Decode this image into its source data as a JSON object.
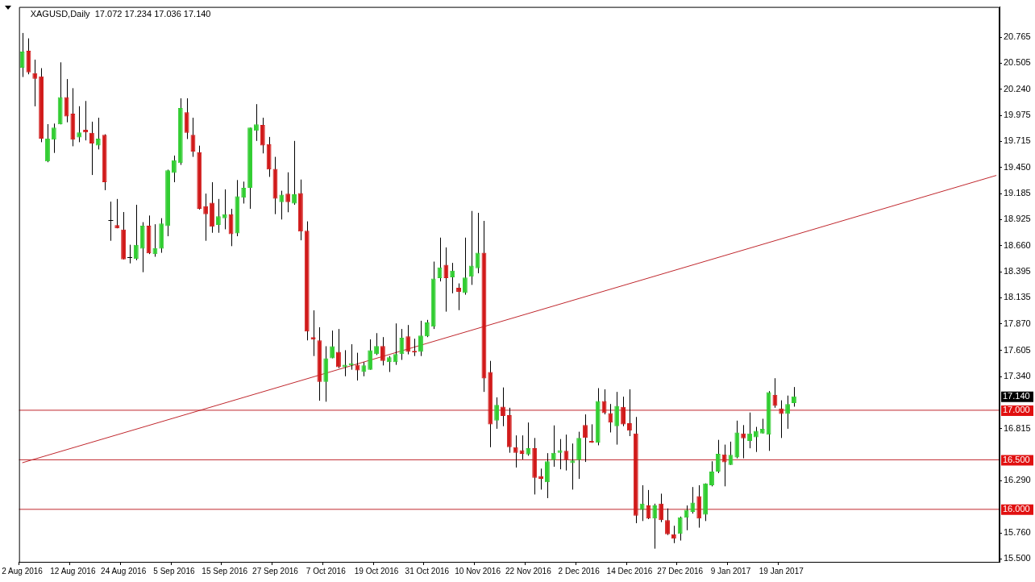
{
  "chart_data": {
    "type": "candlestick",
    "title": "XAGUSD,Daily  17.072 17.234 17.036 17.140",
    "categories": [
      "2 Aug 2016",
      null,
      null,
      null,
      null,
      null,
      null,
      null,
      "12 Aug 2016",
      null,
      null,
      null,
      null,
      null,
      null,
      null,
      "24 Aug 2016",
      null,
      null,
      null,
      null,
      null,
      null,
      null,
      "5 Sep 2016",
      null,
      null,
      null,
      null,
      null,
      null,
      null,
      "15 Sep 2016",
      null,
      null,
      null,
      null,
      null,
      null,
      null,
      "27 Sep 2016",
      null,
      null,
      null,
      null,
      null,
      null,
      null,
      "7 Oct 2016",
      null,
      null,
      null,
      null,
      null,
      null,
      null,
      "19 Oct 2016",
      null,
      null,
      null,
      null,
      null,
      null,
      null,
      "31 Oct 2016",
      null,
      null,
      null,
      null,
      null,
      null,
      null,
      "10 Nov 2016",
      null,
      null,
      null,
      null,
      null,
      null,
      null,
      "22 Nov 2016",
      null,
      null,
      null,
      null,
      null,
      null,
      null,
      "2 Dec 2016",
      null,
      null,
      null,
      null,
      null,
      null,
      null,
      "14 Dec 2016",
      null,
      null,
      null,
      null,
      null,
      null,
      null,
      "27 Dec 2016",
      null,
      null,
      null,
      null,
      null,
      null,
      null,
      "9 Jan 2017",
      null,
      null,
      null,
      null,
      null,
      null,
      null,
      "19 Jan 2017",
      null,
      null,
      null,
      null,
      null,
      null,
      null,
      null,
      null,
      null,
      null,
      null,
      null,
      null,
      null,
      null,
      null,
      null,
      null,
      null,
      null,
      null,
      null,
      null,
      null,
      null,
      null,
      null,
      null,
      null,
      null,
      null,
      null,
      null
    ],
    "ohlc": [
      [
        20.457,
        20.807,
        20.363,
        20.619
      ],
      [
        20.627,
        20.753,
        20.39,
        20.409
      ],
      [
        20.401,
        20.538,
        20.067,
        20.344
      ],
      [
        20.369,
        20.452,
        19.705,
        19.74
      ],
      [
        19.511,
        19.887,
        19.503,
        19.74
      ],
      [
        19.731,
        19.893,
        19.597,
        19.852
      ],
      [
        19.885,
        20.511,
        19.885,
        20.159
      ],
      [
        20.159,
        20.342,
        19.906,
        19.965
      ],
      [
        19.992,
        20.25,
        19.664,
        19.731
      ],
      [
        19.753,
        20.068,
        19.705,
        19.804
      ],
      [
        19.831,
        20.121,
        19.723,
        19.804
      ],
      [
        19.799,
        19.912,
        19.374,
        19.691
      ],
      [
        19.672,
        19.952,
        19.632,
        19.74
      ],
      [
        19.78,
        19.785,
        19.221,
        19.301
      ],
      [
        18.917,
        19.105,
        18.71,
        18.917
      ],
      [
        18.869,
        19.132,
        18.836,
        18.836
      ],
      [
        18.823,
        19.0,
        18.522,
        18.522
      ],
      [
        18.541,
        18.67,
        18.482,
        18.541
      ],
      [
        18.527,
        19.073,
        18.514,
        18.67
      ],
      [
        18.63,
        18.898,
        18.393,
        18.863
      ],
      [
        18.863,
        18.965,
        18.576,
        18.584
      ],
      [
        18.576,
        18.877,
        18.549,
        18.637
      ],
      [
        18.63,
        18.938,
        18.589,
        18.885
      ],
      [
        18.858,
        19.428,
        18.756,
        19.422
      ],
      [
        19.395,
        19.57,
        19.301,
        19.524
      ],
      [
        19.495,
        20.148,
        19.476,
        20.049
      ],
      [
        20.008,
        20.148,
        19.737,
        19.799
      ],
      [
        19.78,
        19.952,
        19.557,
        19.61
      ],
      [
        19.605,
        19.67,
        19.025,
        19.033
      ],
      [
        19.06,
        19.186,
        18.71,
        18.979
      ],
      [
        19.094,
        19.301,
        18.791,
        18.853
      ],
      [
        18.871,
        19.132,
        18.791,
        18.957
      ],
      [
        18.938,
        19.229,
        18.826,
        18.979
      ],
      [
        18.979,
        19.033,
        18.656,
        18.777
      ],
      [
        18.785,
        19.323,
        18.756,
        19.159
      ],
      [
        19.145,
        19.307,
        19.086,
        19.245
      ],
      [
        19.245,
        19.852,
        19.033,
        19.852
      ],
      [
        19.82,
        20.089,
        19.718,
        19.885
      ],
      [
        19.879,
        19.952,
        19.592,
        19.672
      ],
      [
        19.686,
        19.758,
        19.355,
        19.43
      ],
      [
        19.436,
        19.557,
        18.979,
        19.135
      ],
      [
        19.1,
        19.215,
        18.925,
        19.175
      ],
      [
        19.186,
        19.401,
        18.998,
        19.1
      ],
      [
        19.086,
        19.718,
        19.073,
        19.18
      ],
      [
        19.191,
        19.328,
        18.715,
        18.804
      ],
      [
        18.812,
        18.906,
        17.705,
        17.794
      ],
      [
        17.738,
        18.008,
        17.547,
        17.715
      ],
      [
        17.705,
        17.837,
        17.096,
        17.287
      ],
      [
        17.287,
        17.646,
        17.086,
        17.524
      ],
      [
        17.524,
        17.804,
        17.524,
        17.646
      ],
      [
        17.59,
        17.82,
        17.425,
        17.435
      ],
      [
        17.435,
        17.606,
        17.343,
        17.458
      ],
      [
        17.452,
        17.666,
        17.409,
        17.475
      ],
      [
        17.458,
        17.58,
        17.3,
        17.402
      ],
      [
        17.386,
        17.485,
        17.343,
        17.452
      ],
      [
        17.409,
        17.715,
        17.409,
        17.606
      ],
      [
        17.567,
        17.778,
        17.557,
        17.649
      ],
      [
        17.649,
        17.738,
        17.452,
        17.498
      ],
      [
        17.485,
        17.547,
        17.386,
        17.534
      ],
      [
        17.485,
        17.876,
        17.458,
        17.567
      ],
      [
        17.567,
        17.82,
        17.508,
        17.731
      ],
      [
        17.745,
        17.86,
        17.564,
        17.59
      ],
      [
        17.6,
        17.722,
        17.547,
        17.583
      ],
      [
        17.59,
        17.903,
        17.547,
        17.754
      ],
      [
        17.745,
        17.912,
        17.738,
        17.886
      ],
      [
        17.843,
        18.5,
        17.82,
        18.33
      ],
      [
        18.334,
        18.742,
        18.3,
        18.441
      ],
      [
        18.468,
        18.643,
        17.995,
        18.334
      ],
      [
        18.342,
        18.487,
        18.18,
        18.409
      ],
      [
        18.236,
        18.28,
        18.01,
        18.196
      ],
      [
        18.183,
        18.742,
        18.166,
        18.339
      ],
      [
        18.347,
        19.011,
        18.265,
        18.46
      ],
      [
        18.433,
        18.992,
        18.382,
        18.589
      ],
      [
        18.589,
        18.911,
        17.185,
        17.32
      ],
      [
        17.386,
        17.498,
        16.627,
        16.858
      ],
      [
        16.895,
        17.13,
        16.813,
        17.055
      ],
      [
        17.036,
        17.23,
        16.839,
        16.943
      ],
      [
        16.951,
        17.025,
        16.571,
        16.627
      ],
      [
        16.627,
        16.746,
        16.422,
        16.571
      ],
      [
        16.597,
        16.746,
        16.504,
        16.56
      ],
      [
        16.553,
        16.876,
        16.541,
        16.616
      ],
      [
        16.616,
        16.72,
        16.15,
        16.318
      ],
      [
        16.337,
        16.411,
        16.199,
        16.307
      ],
      [
        16.273,
        16.567,
        16.113,
        16.485
      ],
      [
        16.497,
        16.847,
        16.43,
        16.571
      ],
      [
        16.571,
        16.709,
        16.404,
        16.597
      ],
      [
        16.59,
        16.754,
        16.392,
        16.497
      ],
      [
        16.467,
        16.664,
        16.199,
        16.493
      ],
      [
        16.497,
        16.783,
        16.307,
        16.72
      ],
      [
        16.85,
        16.958,
        16.478,
        16.72
      ],
      [
        16.69,
        16.858,
        16.672,
        16.672
      ],
      [
        16.672,
        17.223,
        16.646,
        17.092
      ],
      [
        17.092,
        17.211,
        16.958,
        16.97
      ],
      [
        16.97,
        17.063,
        16.776,
        16.876
      ],
      [
        16.839,
        17.185,
        16.653,
        17.044
      ],
      [
        17.033,
        17.137,
        16.839,
        16.858
      ],
      [
        16.869,
        17.211,
        16.739,
        16.794
      ],
      [
        16.765,
        16.932,
        15.86,
        15.935
      ],
      [
        15.994,
        16.243,
        15.882,
        16.057
      ],
      [
        16.039,
        16.195,
        15.901,
        15.908
      ],
      [
        15.908,
        16.057,
        15.603,
        16.039
      ],
      [
        16.057,
        16.158,
        15.871,
        15.89
      ],
      [
        15.89,
        16.009,
        15.741,
        15.748
      ],
      [
        15.748,
        15.834,
        15.659,
        15.704
      ],
      [
        15.752,
        15.927,
        15.685,
        15.92
      ],
      [
        15.916,
        16.039,
        15.789,
        15.994
      ],
      [
        15.975,
        16.225,
        15.957,
        16.068
      ],
      [
        16.132,
        16.243,
        15.815,
        15.908
      ],
      [
        15.946,
        16.262,
        15.882,
        16.262
      ],
      [
        16.243,
        16.485,
        16.232,
        16.381
      ],
      [
        16.381,
        16.701,
        16.366,
        16.56
      ],
      [
        16.553,
        16.653,
        16.232,
        16.474
      ],
      [
        16.448,
        16.683,
        16.448,
        16.549
      ],
      [
        16.523,
        16.895,
        16.515,
        16.776
      ],
      [
        16.765,
        16.85,
        16.515,
        16.716
      ],
      [
        16.69,
        16.977,
        16.616,
        16.765
      ],
      [
        16.727,
        16.832,
        16.579,
        16.791
      ],
      [
        16.765,
        16.914,
        16.765,
        16.813
      ],
      [
        16.754,
        17.193,
        16.59,
        17.182
      ],
      [
        17.156,
        17.323,
        17.025,
        17.044
      ],
      [
        17.018,
        17.1,
        16.72,
        16.962
      ],
      [
        16.962,
        17.148,
        16.813,
        17.063
      ],
      [
        17.072,
        17.234,
        17.036,
        17.14
      ],
      null,
      null,
      null,
      null,
      null,
      null,
      null,
      null,
      null,
      null,
      null,
      null,
      null,
      null,
      null,
      null,
      null,
      null,
      null,
      null,
      null,
      null,
      null,
      null,
      null,
      null,
      null,
      null,
      null,
      null,
      null,
      null
    ],
    "colors": [
      "#32cd32",
      "#d11a1a",
      "#d11a1a",
      "#d11a1a",
      "#32cd32",
      "#32cd32",
      "#32cd32",
      "#d11a1a",
      "#d11a1a",
      "#32cd32",
      "#d11a1a",
      "#d11a1a",
      "#32cd32",
      "#d11a1a",
      "#000000",
      "#d11a1a",
      "#d11a1a",
      "#000000",
      "#32cd32",
      "#32cd32",
      "#d11a1a",
      "#32cd32",
      "#32cd32",
      "#32cd32",
      "#32cd32",
      "#32cd32",
      "#d11a1a",
      "#d11a1a",
      "#d11a1a",
      "#d11a1a",
      "#d11a1a",
      "#32cd32",
      "#32cd32",
      "#d11a1a",
      "#32cd32",
      "#32cd32",
      "#32cd32",
      "#32cd32",
      "#d11a1a",
      "#d11a1a",
      "#d11a1a",
      "#32cd32",
      "#d11a1a",
      "#32cd32",
      "#d11a1a",
      "#d11a1a",
      "#d11a1a",
      "#d11a1a",
      "#32cd32",
      "#32cd32",
      "#d11a1a",
      "#32cd32",
      "#32cd32",
      "#d11a1a",
      "#32cd32",
      "#32cd32",
      "#32cd32",
      "#d11a1a",
      "#32cd32",
      "#32cd32",
      "#32cd32",
      "#d11a1a",
      "#d11a1a",
      "#32cd32",
      "#32cd32",
      "#32cd32",
      "#32cd32",
      "#d11a1a",
      "#32cd32",
      "#d11a1a",
      "#32cd32",
      "#32cd32",
      "#32cd32",
      "#d11a1a",
      "#d11a1a",
      "#32cd32",
      "#d11a1a",
      "#d11a1a",
      "#d11a1a",
      "#d11a1a",
      "#32cd32",
      "#d11a1a",
      "#d11a1a",
      "#32cd32",
      "#32cd32",
      "#32cd32",
      "#d11a1a",
      "#32cd32",
      "#32cd32",
      "#d11a1a",
      "#d11a1a",
      "#32cd32",
      "#d11a1a",
      "#d11a1a",
      "#32cd32",
      "#d11a1a",
      "#d11a1a",
      "#d11a1a",
      "#32cd32",
      "#d11a1a",
      "#32cd32",
      "#d11a1a",
      "#d11a1a",
      "#d11a1a",
      "#32cd32",
      "#32cd32",
      "#32cd32",
      "#d11a1a",
      "#32cd32",
      "#32cd32",
      "#32cd32",
      "#d11a1a",
      "#32cd32",
      "#32cd32",
      "#d11a1a",
      "#32cd32",
      "#32cd32",
      "#32cd32",
      "#32cd32",
      "#d11a1a",
      "#d11a1a",
      "#32cd32",
      "#32cd32",
      null,
      null,
      null,
      null,
      null,
      null,
      null,
      null,
      null,
      null,
      null,
      null,
      null,
      null,
      null,
      null,
      null,
      null,
      null,
      null,
      null,
      null,
      null,
      null,
      null,
      null,
      null,
      null,
      null,
      null,
      null,
      null
    ],
    "series": [
      {
        "type": "line",
        "color": "#c0272d",
        "values": [
          16.47,
          null,
          null,
          null,
          null,
          null,
          null,
          null,
          null,
          null,
          null,
          null,
          null,
          null,
          null,
          null,
          null,
          null,
          null,
          null,
          null,
          null,
          null,
          null,
          null,
          null,
          null,
          null,
          null,
          null,
          null,
          null,
          null,
          null,
          null,
          null,
          null,
          null,
          null,
          null,
          null,
          null,
          null,
          null,
          null,
          null,
          null,
          null,
          null,
          null,
          null,
          null,
          null,
          null,
          null,
          null,
          null,
          null,
          null,
          null,
          null,
          null,
          null,
          null,
          null,
          null,
          null,
          null,
          null,
          null,
          null,
          null,
          null,
          null,
          null,
          null,
          null,
          null,
          null,
          null,
          null,
          null,
          null,
          null,
          null,
          null,
          null,
          null,
          null,
          null,
          null,
          null,
          null,
          null,
          null,
          null,
          null,
          null,
          null,
          null,
          null,
          null,
          null,
          null,
          null,
          null,
          null,
          null,
          null,
          null,
          null,
          null,
          null,
          null,
          null,
          null,
          null,
          null,
          null,
          null,
          null,
          null,
          null,
          null,
          null,
          null,
          null,
          null,
          null,
          null,
          null,
          null,
          null,
          null,
          null,
          null,
          null,
          null,
          null,
          null,
          null,
          null,
          null,
          null,
          null,
          null,
          null,
          null,
          null,
          null,
          null,
          null,
          null,
          null,
          19.37
        ]
      }
    ],
    "ylim": [
      15.47,
      21.07
    ],
    "yticks": [
      {
        "value": 15.5,
        "label": "15.500"
      },
      {
        "value": 15.76,
        "label": "15.760"
      },
      {
        "value": 16.29,
        "label": "16.290"
      },
      {
        "value": 16.815,
        "label": "16.815"
      },
      {
        "value": 17.34,
        "label": "17.340"
      },
      {
        "value": 17.605,
        "label": "17.605"
      },
      {
        "value": 17.87,
        "label": "17.870"
      },
      {
        "value": 18.135,
        "label": "18.135"
      },
      {
        "value": 18.395,
        "label": "18.395"
      },
      {
        "value": 18.66,
        "label": "18.660"
      },
      {
        "value": 18.925,
        "label": "18.925"
      },
      {
        "value": 19.185,
        "label": "19.185"
      },
      {
        "value": 19.45,
        "label": "19.450"
      },
      {
        "value": 19.715,
        "label": "19.715"
      },
      {
        "value": 19.975,
        "label": "19.975"
      },
      {
        "value": 20.24,
        "label": "20.240"
      },
      {
        "value": 20.505,
        "label": "20.505"
      },
      {
        "value": 20.765,
        "label": "20.765"
      }
    ],
    "ref_lines": [
      {
        "axis": "y",
        "value": 17.0,
        "label": "17.000",
        "color": "#c0272d"
      },
      {
        "axis": "y",
        "value": 16.5,
        "label": "16.500",
        "color": "#c0272d"
      },
      {
        "axis": "y",
        "value": 16.0,
        "label": "16.000",
        "color": "#c0272d"
      }
    ],
    "annotations": [
      {
        "text": "17.140",
        "y": 17.14
      }
    ],
    "grid": false,
    "legend": false
  }
}
